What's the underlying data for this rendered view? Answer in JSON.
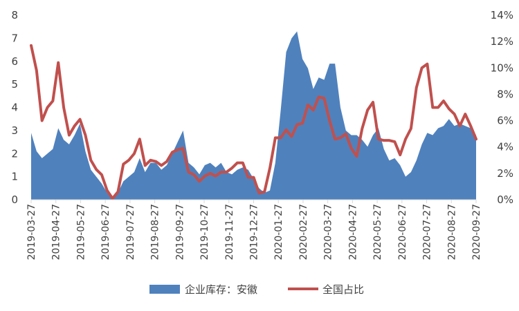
{
  "chart_data": {
    "type": "area+line",
    "title": "",
    "xlabel": "",
    "ylabel_left": "",
    "ylabel_right": "",
    "ylim_left": [
      0,
      8
    ],
    "ylim_right": [
      0,
      14
    ],
    "yticks_left": [
      "0",
      "1",
      "2",
      "3",
      "4",
      "5",
      "6",
      "7",
      "8"
    ],
    "yticks_right": [
      "0%",
      "2%",
      "4%",
      "6%",
      "8%",
      "10%",
      "12%",
      "14%"
    ],
    "xticks": [
      "2019-03-27",
      "2019-04-27",
      "2019-05-27",
      "2019-06-27",
      "2019-07-27",
      "2019-08-27",
      "2019-09-27",
      "2019-10-27",
      "2019-11-27",
      "2019-12-27",
      "2020-01-27",
      "2020-02-27",
      "2020-03-27",
      "2020-04-27",
      "2020-05-27",
      "2020-06-27",
      "2020-07-27",
      "2020-08-27",
      "2020-09-27"
    ],
    "n_points": 83,
    "legend_position": "bottom",
    "series": [
      {
        "name": "企业库存：安徽",
        "kind": "area",
        "axis": "left",
        "color": "#4F81BD",
        "values": [
          2.9,
          2.1,
          1.8,
          2.0,
          2.2,
          3.1,
          2.6,
          2.4,
          2.8,
          3.3,
          2.1,
          1.3,
          1.0,
          0.7,
          0.3,
          0.0,
          0.3,
          0.8,
          1.0,
          1.2,
          1.8,
          1.2,
          1.6,
          1.6,
          1.3,
          1.5,
          2.0,
          2.5,
          3.0,
          1.6,
          1.4,
          1.1,
          1.5,
          1.6,
          1.4,
          1.6,
          1.2,
          1.1,
          1.3,
          1.4,
          1.3,
          0.9,
          0.5,
          0.3,
          0.4,
          1.6,
          3.9,
          6.4,
          7.0,
          7.3,
          6.1,
          5.7,
          4.8,
          5.3,
          5.2,
          5.9,
          5.9,
          4.0,
          3.0,
          2.8,
          2.8,
          2.6,
          2.3,
          2.8,
          3.1,
          2.2,
          1.7,
          1.8,
          1.5,
          1.0,
          1.2,
          1.7,
          2.4,
          2.9,
          2.8,
          3.1,
          3.2,
          3.5,
          3.2,
          3.3,
          3.2,
          3.1,
          2.8
        ]
      },
      {
        "name": "全国占比",
        "kind": "line",
        "axis": "right",
        "color": "#C0504D",
        "values": [
          11.7,
          9.8,
          6.0,
          7.0,
          7.5,
          10.4,
          7.0,
          4.9,
          5.6,
          6.1,
          4.9,
          3.0,
          2.3,
          1.9,
          0.7,
          0.1,
          0.6,
          2.7,
          3.0,
          3.5,
          4.6,
          2.6,
          3.0,
          2.9,
          2.6,
          2.9,
          3.6,
          3.8,
          3.9,
          2.1,
          1.9,
          1.4,
          1.8,
          2.0,
          1.8,
          2.1,
          2.1,
          2.4,
          2.8,
          2.8,
          1.7,
          1.7,
          0.5,
          0.6,
          2.4,
          4.7,
          4.7,
          5.3,
          4.8,
          5.7,
          5.8,
          7.2,
          6.8,
          7.8,
          7.7,
          6.0,
          4.6,
          4.7,
          5.0,
          3.9,
          3.3,
          5.4,
          6.8,
          7.4,
          4.6,
          4.5,
          4.5,
          4.4,
          3.4,
          4.6,
          5.4,
          8.5,
          10.0,
          10.3,
          7.0,
          7.0,
          7.5,
          6.9,
          6.5,
          5.6,
          6.5,
          5.6,
          4.6
        ]
      }
    ]
  }
}
